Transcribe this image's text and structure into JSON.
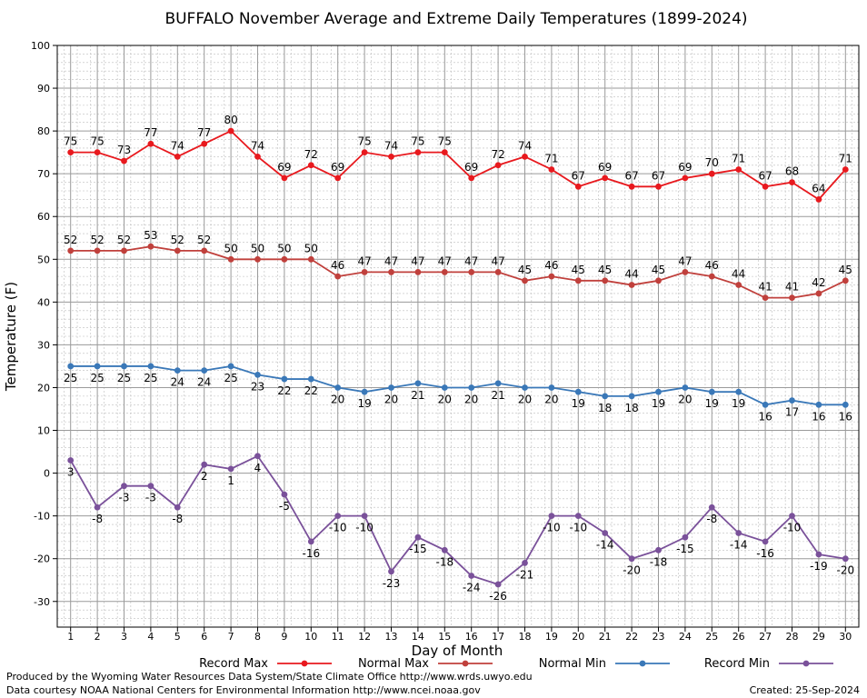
{
  "chart_data": {
    "type": "line",
    "title": "BUFFALO November Average and Extreme Daily Temperatures (1899-2024)",
    "xlabel": "Day of Month",
    "ylabel": "Temperature (F)",
    "xlim": [
      1,
      30
    ],
    "ylim": [
      -36,
      100
    ],
    "yticks": [
      -30,
      -20,
      -10,
      0,
      10,
      20,
      30,
      40,
      50,
      60,
      70,
      80,
      90,
      100
    ],
    "grid": true,
    "legend_position": "bottom",
    "x": [
      1,
      2,
      3,
      4,
      5,
      6,
      7,
      8,
      9,
      10,
      11,
      12,
      13,
      14,
      15,
      16,
      17,
      18,
      19,
      20,
      21,
      22,
      23,
      24,
      25,
      26,
      27,
      28,
      29,
      30
    ],
    "series": [
      {
        "name": "Record Max",
        "color": "#e8191e",
        "values": [
          75,
          75,
          73,
          77,
          74,
          77,
          80,
          74,
          69,
          72,
          69,
          75,
          74,
          75,
          75,
          69,
          72,
          74,
          71,
          67,
          69,
          67,
          67,
          69,
          70,
          71,
          67,
          68,
          64,
          71
        ]
      },
      {
        "name": "Normal Max",
        "color": "#c0403c",
        "values": [
          52,
          52,
          52,
          53,
          52,
          52,
          50,
          50,
          50,
          50,
          46,
          47,
          47,
          47,
          47,
          47,
          47,
          45,
          46,
          45,
          45,
          44,
          45,
          47,
          46,
          44,
          41,
          41,
          42,
          45
        ]
      },
      {
        "name": "Normal Min",
        "color": "#3a78b8",
        "values": [
          25,
          25,
          25,
          25,
          24,
          24,
          25,
          23,
          22,
          22,
          20,
          19,
          20,
          21,
          20,
          20,
          21,
          20,
          20,
          19,
          18,
          18,
          19,
          20,
          19,
          19,
          16,
          17,
          16,
          16
        ]
      },
      {
        "name": "Record Min",
        "color": "#7a519a",
        "values": [
          3,
          -8,
          -3,
          -3,
          -8,
          2,
          1,
          4,
          -5,
          -16,
          -10,
          -10,
          -23,
          -15,
          -18,
          -24,
          -26,
          -21,
          -10,
          -10,
          -14,
          -20,
          -18,
          -15,
          -8,
          -14,
          -16,
          -10,
          -19,
          -20
        ]
      }
    ]
  },
  "footer": {
    "left_line1": "Produced by the Wyoming Water Resources Data System/State Climate Office http://www.wrds.uwyo.edu",
    "left_line2": "Data courtesy NOAA National Centers for Environmental Information http://www.ncei.noaa.gov",
    "created": "Created:  25-Sep-2024"
  }
}
